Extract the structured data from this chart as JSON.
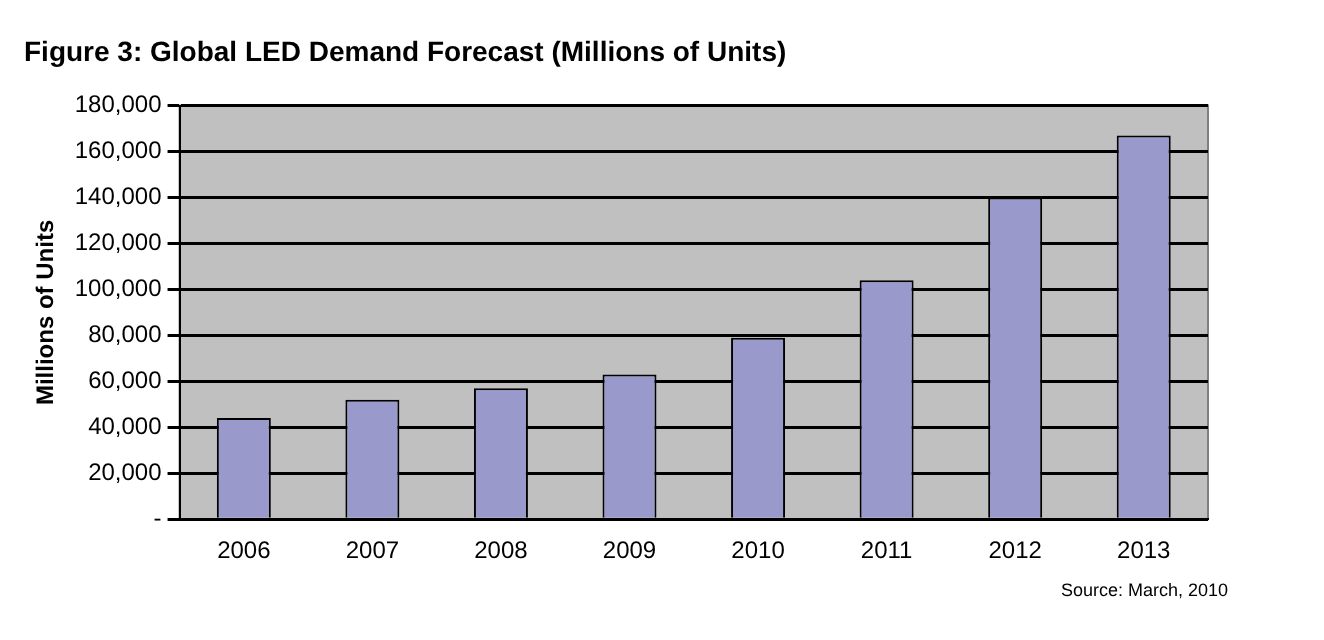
{
  "chart_data": {
    "type": "bar",
    "title": "Figure 3: Global LED Demand Forecast (Millions of Units)",
    "ylabel": "Millions of Units",
    "categories": [
      "2006",
      "2007",
      "2008",
      "2009",
      "2010",
      "2011",
      "2012",
      "2013"
    ],
    "values": [
      44000,
      52000,
      57000,
      63000,
      79000,
      104000,
      140000,
      167000
    ],
    "color": "#9999cc",
    "ylim": [
      0,
      180000
    ],
    "yticks": [
      {
        "value": 0,
        "label": "-"
      },
      {
        "value": 20000,
        "label": "20,000"
      },
      {
        "value": 40000,
        "label": "40,000"
      },
      {
        "value": 60000,
        "label": "60,000"
      },
      {
        "value": 80000,
        "label": "80,000"
      },
      {
        "value": 100000,
        "label": "100,000"
      },
      {
        "value": 120000,
        "label": "120,000"
      },
      {
        "value": 140000,
        "label": "140,000"
      },
      {
        "value": 160000,
        "label": "160,000"
      },
      {
        "value": 180000,
        "label": "180,000"
      }
    ],
    "grid": "y",
    "legend": false,
    "annotations": [
      "Source: March, 2010"
    ]
  }
}
